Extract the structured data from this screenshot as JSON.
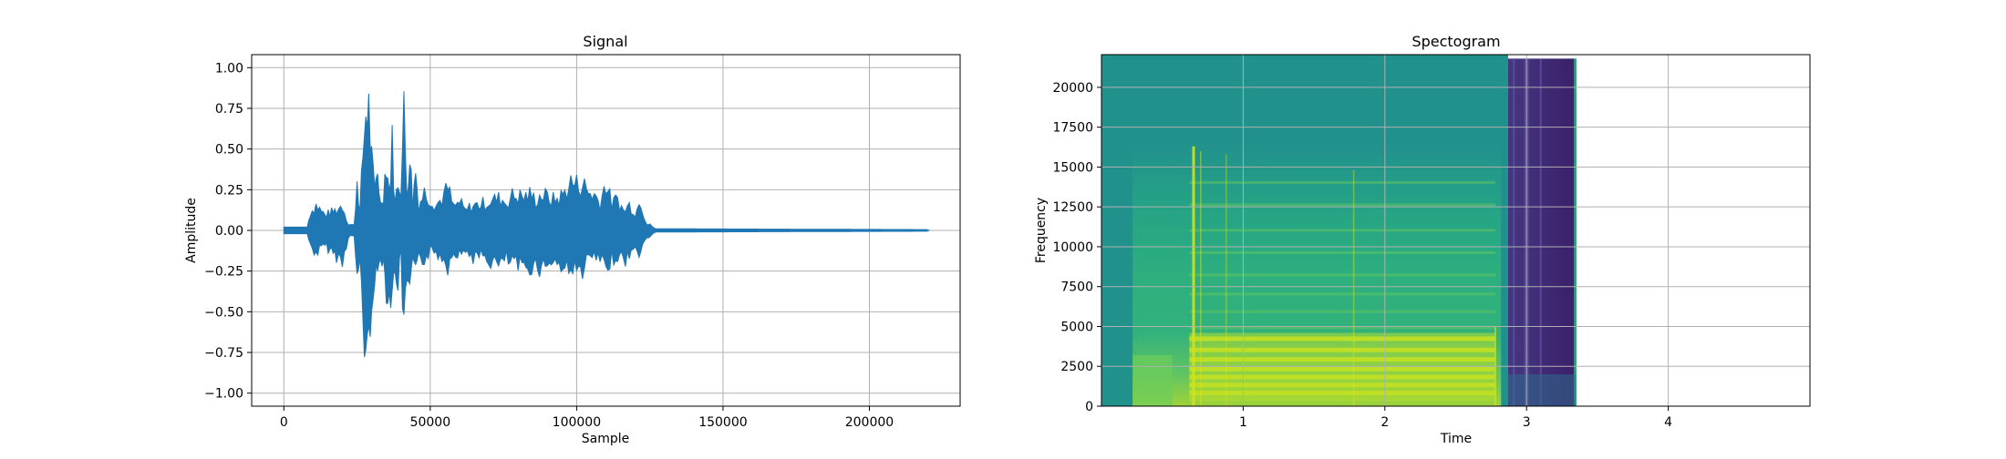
{
  "chart_data": [
    {
      "type": "line",
      "title": "Signal",
      "xlabel": "Sample",
      "ylabel": "Amplitude",
      "xlim": [
        -11000,
        231000
      ],
      "ylim": [
        -1.08,
        1.08
      ],
      "grid": true,
      "xticks": [
        0,
        50000,
        100000,
        150000,
        200000
      ],
      "xtick_labels": [
        "0",
        "50000",
        "100000",
        "150000",
        "200000"
      ],
      "yticks": [
        -1.0,
        -0.75,
        -0.5,
        -0.25,
        0.0,
        0.25,
        0.5,
        0.75,
        1.0
      ],
      "ytick_labels": [
        "−1.00",
        "−0.75",
        "−0.50",
        "−0.25",
        "0.00",
        "0.25",
        "0.50",
        "0.75",
        "1.00"
      ],
      "color": "#1f77b4",
      "sample_range": [
        0,
        220500
      ],
      "series": [
        {
          "kind": "envelope",
          "x": [
            0,
            8000,
            9000,
            11000,
            14000,
            18000,
            20000,
            22000,
            24000,
            25000,
            26000,
            27000,
            28000,
            29000,
            30000,
            31000,
            32000,
            33000,
            34000,
            35000,
            36000,
            37000,
            38000,
            39000,
            40000,
            41000,
            42000,
            43000,
            44000,
            45000,
            46000,
            48000,
            50000,
            52000,
            54000,
            56000,
            58000,
            60000,
            62000,
            64000,
            66000,
            68000,
            70000,
            72000,
            74000,
            76000,
            78000,
            80000,
            82000,
            84000,
            86000,
            88000,
            90000,
            92000,
            94000,
            96000,
            98000,
            100000,
            102000,
            104000,
            106000,
            108000,
            110000,
            112000,
            114000,
            116000,
            118000,
            120000,
            122000,
            123000,
            124000,
            125000,
            126000,
            127000,
            220500
          ],
          "upper": [
            0.02,
            0.02,
            0.14,
            0.2,
            0.12,
            0.16,
            0.2,
            0.05,
            0.04,
            0.4,
            0.15,
            0.6,
            0.93,
            0.95,
            0.55,
            0.3,
            0.5,
            0.2,
            0.3,
            0.55,
            0.3,
            0.68,
            0.2,
            0.4,
            0.35,
            0.92,
            0.3,
            0.62,
            0.2,
            0.48,
            0.2,
            0.3,
            0.25,
            0.2,
            0.25,
            0.33,
            0.18,
            0.22,
            0.15,
            0.19,
            0.2,
            0.21,
            0.23,
            0.24,
            0.25,
            0.22,
            0.27,
            0.27,
            0.26,
            0.28,
            0.24,
            0.28,
            0.26,
            0.24,
            0.25,
            0.3,
            0.38,
            0.36,
            0.37,
            0.3,
            0.28,
            0.22,
            0.38,
            0.2,
            0.25,
            0.15,
            0.2,
            0.14,
            0.23,
            0.12,
            0.06,
            0.04,
            0.02,
            0.01,
            0.005
          ],
          "lower": [
            -0.02,
            -0.02,
            -0.12,
            -0.18,
            -0.12,
            -0.2,
            -0.25,
            -0.05,
            -0.04,
            -0.45,
            -0.2,
            -0.7,
            -0.98,
            -0.96,
            -0.5,
            -0.4,
            -0.35,
            -0.2,
            -0.25,
            -0.45,
            -0.5,
            -0.55,
            -0.3,
            -0.4,
            -0.2,
            -0.84,
            -0.4,
            -0.48,
            -0.3,
            -0.35,
            -0.15,
            -0.25,
            -0.15,
            -0.18,
            -0.2,
            -0.28,
            -0.15,
            -0.2,
            -0.15,
            -0.2,
            -0.22,
            -0.2,
            -0.24,
            -0.25,
            -0.28,
            -0.22,
            -0.26,
            -0.28,
            -0.3,
            -0.28,
            -0.27,
            -0.3,
            -0.25,
            -0.24,
            -0.27,
            -0.32,
            -0.25,
            -0.35,
            -0.3,
            -0.24,
            -0.2,
            -0.25,
            -0.32,
            -0.22,
            -0.2,
            -0.24,
            -0.2,
            -0.15,
            -0.18,
            -0.1,
            -0.06,
            -0.04,
            -0.02,
            -0.01,
            -0.005
          ]
        }
      ]
    },
    {
      "type": "heatmap",
      "title": "Spectogram",
      "xlabel": "Time",
      "ylabel": "Frequency",
      "xlim": [
        0.0,
        5.0
      ],
      "ylim": [
        0,
        22050
      ],
      "grid": true,
      "xticks": [
        1,
        2,
        3,
        4
      ],
      "xtick_labels": [
        "1",
        "2",
        "3",
        "4"
      ],
      "yticks": [
        0,
        2500,
        5000,
        7500,
        10000,
        12500,
        15000,
        17500,
        20000
      ],
      "ytick_labels": [
        "0",
        "2500",
        "5000",
        "7500",
        "10000",
        "12500",
        "15000",
        "17500",
        "20000"
      ],
      "colormap": "viridis",
      "data_extent_time": [
        0.0,
        3.35
      ],
      "dark_region_start_time": 2.87,
      "colors": {
        "background": "#21918c",
        "dark": "#3b1f6a",
        "bright": "#b5de2b",
        "yellow": "#d4e21a"
      }
    }
  ]
}
